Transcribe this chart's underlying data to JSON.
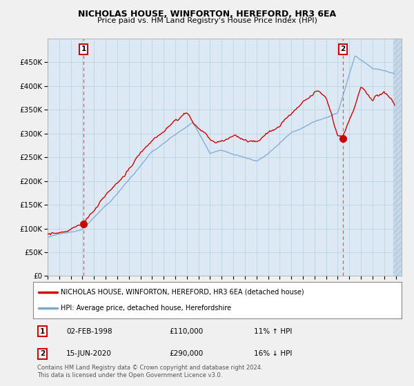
{
  "title": "NICHOLAS HOUSE, WINFORTON, HEREFORD, HR3 6EA",
  "subtitle": "Price paid vs. HM Land Registry's House Price Index (HPI)",
  "legend_line1": "NICHOLAS HOUSE, WINFORTON, HEREFORD, HR3 6EA (detached house)",
  "legend_line2": "HPI: Average price, detached house, Herefordshire",
  "annotation1_date": "02-FEB-1998",
  "annotation1_price": "£110,000",
  "annotation1_hpi": "11% ↑ HPI",
  "annotation2_date": "15-JUN-2020",
  "annotation2_price": "£290,000",
  "annotation2_hpi": "16% ↓ HPI",
  "footnote": "Contains HM Land Registry data © Crown copyright and database right 2024.\nThis data is licensed under the Open Government Licence v3.0.",
  "red_color": "#cc0000",
  "blue_color": "#7aa8d2",
  "plot_bg_color": "#dce9f5",
  "background_color": "#f0f0f0",
  "hatch_color": "#c8d8e8",
  "sale1_x": 1998.09,
  "sale1_y": 110000,
  "sale2_x": 2020.46,
  "sale2_y": 290000,
  "ylim": [
    0,
    500000
  ],
  "yticks": [
    0,
    50000,
    100000,
    150000,
    200000,
    250000,
    300000,
    350000,
    400000,
    450000
  ],
  "ytick_labels": [
    "£0",
    "£50K",
    "£100K",
    "£150K",
    "£200K",
    "£250K",
    "£300K",
    "£350K",
    "£400K",
    "£450K"
  ],
  "xmin": 1995.0,
  "xmax": 2025.5,
  "data_end": 2024.8
}
